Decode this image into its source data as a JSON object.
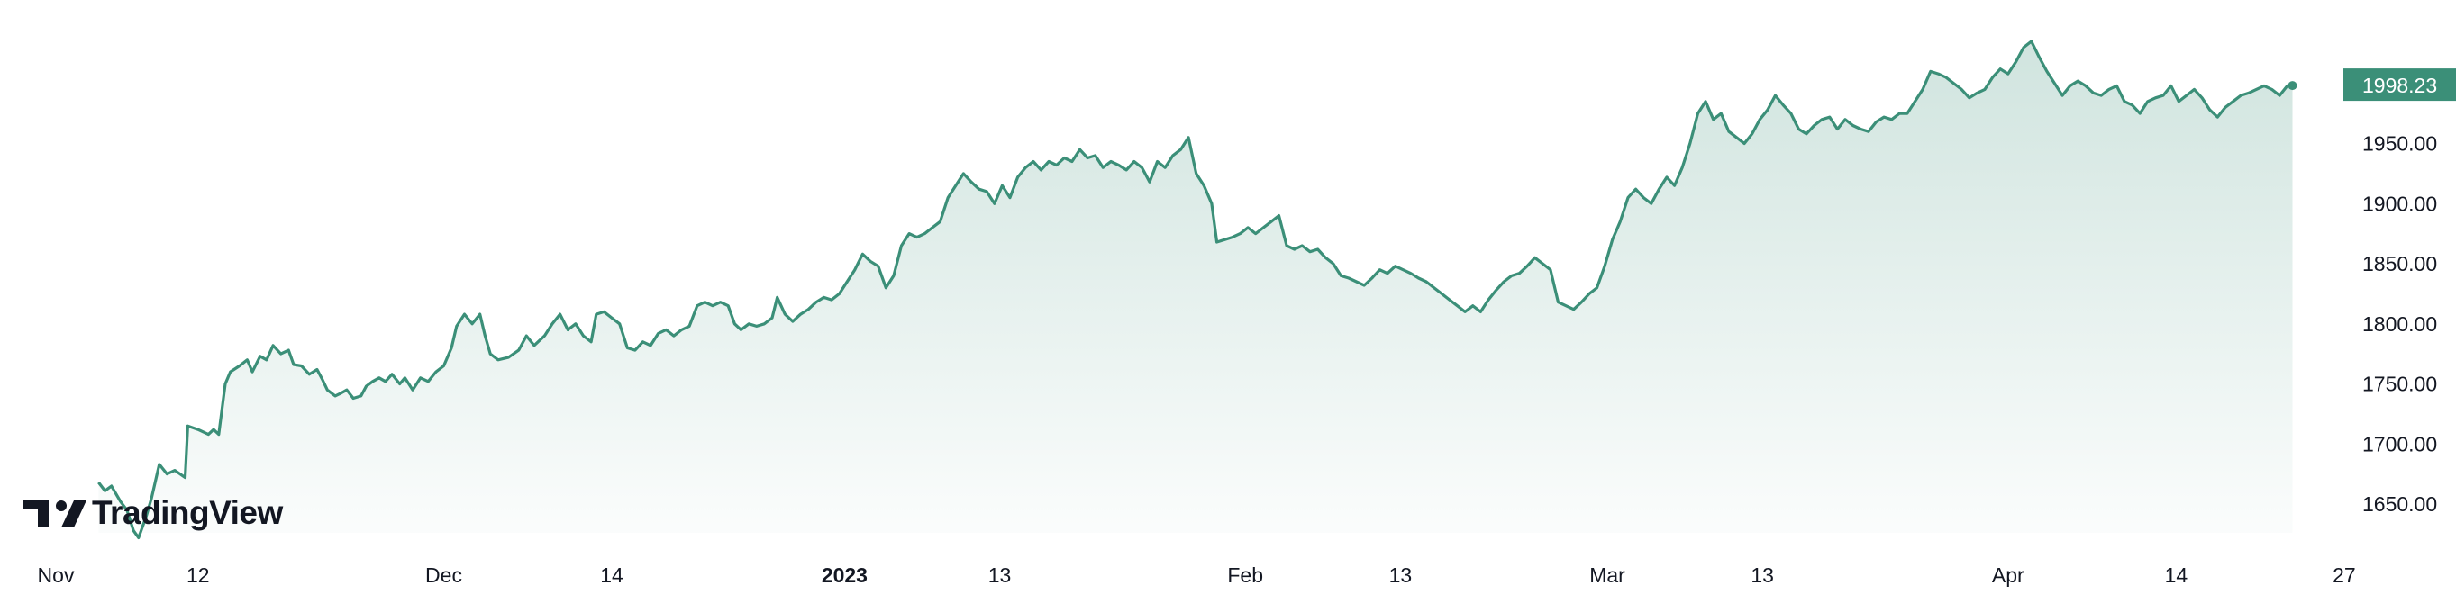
{
  "chart_data": {
    "type": "area",
    "title": "",
    "xlabel": "",
    "ylabel": "",
    "ylim": [
      1622,
      2050
    ],
    "line_color": "#3b8f78",
    "fill_color": "#3b8f78",
    "last_price_label": "1998.23",
    "y_ticks": [
      "1650.00",
      "1700.00",
      "1750.00",
      "1800.00",
      "1850.00",
      "1900.00",
      "1950.00"
    ],
    "x_ticks": [
      {
        "label": "Nov",
        "day": 0,
        "bold": false
      },
      {
        "label": "12",
        "day": 11,
        "bold": false
      },
      {
        "label": "Dec",
        "day": 30,
        "bold": false
      },
      {
        "label": "14",
        "day": 43,
        "bold": false
      },
      {
        "label": "2023",
        "day": 61,
        "bold": true
      },
      {
        "label": "13",
        "day": 73,
        "bold": false
      },
      {
        "label": "Feb",
        "day": 92,
        "bold": false
      },
      {
        "label": "13",
        "day": 104,
        "bold": false
      },
      {
        "label": "Mar",
        "day": 120,
        "bold": false
      },
      {
        "label": "13",
        "day": 132,
        "bold": false
      },
      {
        "label": "Apr",
        "day": 151,
        "bold": false
      },
      {
        "label": "14",
        "day": 164,
        "bold": false
      },
      {
        "label": "27",
        "day": 177,
        "bold": false
      }
    ],
    "series": [
      {
        "values": [
          [
            3.3,
            1668
          ],
          [
            3.8,
            1661
          ],
          [
            4.3,
            1665
          ],
          [
            5.0,
            1652
          ],
          [
            5.5,
            1645
          ],
          [
            6.0,
            1628
          ],
          [
            6.4,
            1622
          ],
          [
            7.0,
            1640
          ],
          [
            7.4,
            1655
          ],
          [
            8.0,
            1683
          ],
          [
            8.6,
            1675
          ],
          [
            9.2,
            1678
          ],
          [
            10.0,
            1672
          ],
          [
            10.2,
            1715
          ],
          [
            11.0,
            1712
          ],
          [
            11.8,
            1708
          ],
          [
            12.2,
            1712
          ],
          [
            12.6,
            1708
          ],
          [
            13.1,
            1750
          ],
          [
            13.5,
            1760
          ],
          [
            14.2,
            1765
          ],
          [
            14.8,
            1770
          ],
          [
            15.2,
            1760
          ],
          [
            15.8,
            1773
          ],
          [
            16.3,
            1770
          ],
          [
            16.8,
            1782
          ],
          [
            17.4,
            1775
          ],
          [
            18.0,
            1778
          ],
          [
            18.4,
            1766
          ],
          [
            19.0,
            1765
          ],
          [
            19.6,
            1758
          ],
          [
            20.2,
            1762
          ],
          [
            20.6,
            1754
          ],
          [
            21.0,
            1745
          ],
          [
            21.6,
            1740
          ],
          [
            22.0,
            1742
          ],
          [
            22.5,
            1745
          ],
          [
            23.0,
            1738
          ],
          [
            23.6,
            1740
          ],
          [
            24.0,
            1748
          ],
          [
            24.5,
            1752
          ],
          [
            25.0,
            1755
          ],
          [
            25.5,
            1752
          ],
          [
            26.0,
            1758
          ],
          [
            26.6,
            1750
          ],
          [
            27.0,
            1755
          ],
          [
            27.6,
            1745
          ],
          [
            28.2,
            1755
          ],
          [
            28.8,
            1752
          ],
          [
            29.4,
            1760
          ],
          [
            30.0,
            1765
          ],
          [
            30.6,
            1780
          ],
          [
            31.0,
            1798
          ],
          [
            31.6,
            1808
          ],
          [
            32.2,
            1800
          ],
          [
            32.8,
            1808
          ],
          [
            33.2,
            1790
          ],
          [
            33.6,
            1775
          ],
          [
            34.2,
            1770
          ],
          [
            35.0,
            1772
          ],
          [
            35.8,
            1778
          ],
          [
            36.4,
            1790
          ],
          [
            37.0,
            1782
          ],
          [
            37.8,
            1790
          ],
          [
            38.4,
            1800
          ],
          [
            39.0,
            1808
          ],
          [
            39.6,
            1795
          ],
          [
            40.2,
            1800
          ],
          [
            40.8,
            1790
          ],
          [
            41.4,
            1785
          ],
          [
            41.8,
            1808
          ],
          [
            42.4,
            1810
          ],
          [
            43.0,
            1805
          ],
          [
            43.6,
            1800
          ],
          [
            44.2,
            1780
          ],
          [
            44.8,
            1778
          ],
          [
            45.4,
            1785
          ],
          [
            46.0,
            1782
          ],
          [
            46.6,
            1792
          ],
          [
            47.2,
            1795
          ],
          [
            47.8,
            1790
          ],
          [
            48.4,
            1795
          ],
          [
            49.0,
            1798
          ],
          [
            49.6,
            1815
          ],
          [
            50.2,
            1818
          ],
          [
            50.8,
            1815
          ],
          [
            51.4,
            1818
          ],
          [
            52.0,
            1815
          ],
          [
            52.5,
            1800
          ],
          [
            53.0,
            1795
          ],
          [
            53.6,
            1800
          ],
          [
            54.2,
            1798
          ],
          [
            54.8,
            1800
          ],
          [
            55.4,
            1805
          ],
          [
            55.8,
            1822
          ],
          [
            56.4,
            1808
          ],
          [
            57.0,
            1802
          ],
          [
            57.6,
            1808
          ],
          [
            58.2,
            1812
          ],
          [
            58.8,
            1818
          ],
          [
            59.4,
            1822
          ],
          [
            60.0,
            1820
          ],
          [
            60.6,
            1825
          ],
          [
            61.2,
            1835
          ],
          [
            61.8,
            1845
          ],
          [
            62.4,
            1858
          ],
          [
            63.0,
            1852
          ],
          [
            63.6,
            1848
          ],
          [
            64.2,
            1830
          ],
          [
            64.8,
            1840
          ],
          [
            65.4,
            1865
          ],
          [
            66.0,
            1875
          ],
          [
            66.6,
            1872
          ],
          [
            67.2,
            1875
          ],
          [
            67.8,
            1880
          ],
          [
            68.4,
            1885
          ],
          [
            69.0,
            1905
          ],
          [
            69.6,
            1915
          ],
          [
            70.2,
            1925
          ],
          [
            70.8,
            1918
          ],
          [
            71.4,
            1912
          ],
          [
            72.0,
            1910
          ],
          [
            72.6,
            1900
          ],
          [
            73.2,
            1915
          ],
          [
            73.8,
            1905
          ],
          [
            74.4,
            1922
          ],
          [
            75.0,
            1930
          ],
          [
            75.6,
            1935
          ],
          [
            76.2,
            1928
          ],
          [
            76.8,
            1935
          ],
          [
            77.4,
            1932
          ],
          [
            78.0,
            1938
          ],
          [
            78.6,
            1935
          ],
          [
            79.2,
            1945
          ],
          [
            79.8,
            1938
          ],
          [
            80.4,
            1940
          ],
          [
            81.0,
            1930
          ],
          [
            81.6,
            1935
          ],
          [
            82.2,
            1932
          ],
          [
            82.8,
            1928
          ],
          [
            83.4,
            1935
          ],
          [
            84.0,
            1930
          ],
          [
            84.6,
            1918
          ],
          [
            85.2,
            1935
          ],
          [
            85.8,
            1930
          ],
          [
            86.4,
            1940
          ],
          [
            87.0,
            1945
          ],
          [
            87.6,
            1955
          ],
          [
            88.2,
            1925
          ],
          [
            88.8,
            1915
          ],
          [
            89.4,
            1900
          ],
          [
            89.8,
            1868
          ],
          [
            90.4,
            1870
          ],
          [
            91.0,
            1872
          ],
          [
            91.6,
            1875
          ],
          [
            92.2,
            1880
          ],
          [
            92.8,
            1875
          ],
          [
            93.4,
            1880
          ],
          [
            94.0,
            1885
          ],
          [
            94.6,
            1890
          ],
          [
            95.2,
            1865
          ],
          [
            95.8,
            1862
          ],
          [
            96.4,
            1865
          ],
          [
            97.0,
            1860
          ],
          [
            97.6,
            1862
          ],
          [
            98.2,
            1855
          ],
          [
            98.8,
            1850
          ],
          [
            99.4,
            1840
          ],
          [
            100.0,
            1838
          ],
          [
            100.6,
            1835
          ],
          [
            101.2,
            1832
          ],
          [
            101.8,
            1838
          ],
          [
            102.4,
            1845
          ],
          [
            103.0,
            1842
          ],
          [
            103.6,
            1848
          ],
          [
            104.2,
            1845
          ],
          [
            104.8,
            1842
          ],
          [
            105.4,
            1838
          ],
          [
            106.0,
            1835
          ],
          [
            106.6,
            1830
          ],
          [
            107.2,
            1825
          ],
          [
            107.8,
            1820
          ],
          [
            108.4,
            1815
          ],
          [
            109.0,
            1810
          ],
          [
            109.6,
            1815
          ],
          [
            110.2,
            1810
          ],
          [
            110.8,
            1820
          ],
          [
            111.4,
            1828
          ],
          [
            112.0,
            1835
          ],
          [
            112.6,
            1840
          ],
          [
            113.2,
            1842
          ],
          [
            113.8,
            1848
          ],
          [
            114.4,
            1855
          ],
          [
            115.0,
            1850
          ],
          [
            115.6,
            1845
          ],
          [
            116.2,
            1818
          ],
          [
            116.8,
            1815
          ],
          [
            117.4,
            1812
          ],
          [
            118.0,
            1818
          ],
          [
            118.6,
            1825
          ],
          [
            119.2,
            1830
          ],
          [
            119.8,
            1848
          ],
          [
            120.4,
            1870
          ],
          [
            121.0,
            1885
          ],
          [
            121.6,
            1905
          ],
          [
            122.2,
            1912
          ],
          [
            122.8,
            1905
          ],
          [
            123.4,
            1900
          ],
          [
            124.0,
            1912
          ],
          [
            124.6,
            1922
          ],
          [
            125.2,
            1915
          ],
          [
            125.8,
            1930
          ],
          [
            126.4,
            1950
          ],
          [
            127.0,
            1975
          ],
          [
            127.6,
            1985
          ],
          [
            128.2,
            1970
          ],
          [
            128.8,
            1975
          ],
          [
            129.4,
            1960
          ],
          [
            130.0,
            1955
          ],
          [
            130.6,
            1950
          ],
          [
            131.2,
            1958
          ],
          [
            131.8,
            1970
          ],
          [
            132.4,
            1978
          ],
          [
            133.0,
            1990
          ],
          [
            133.6,
            1982
          ],
          [
            134.2,
            1975
          ],
          [
            134.8,
            1962
          ],
          [
            135.4,
            1958
          ],
          [
            136.0,
            1965
          ],
          [
            136.6,
            1970
          ],
          [
            137.2,
            1972
          ],
          [
            137.8,
            1962
          ],
          [
            138.4,
            1970
          ],
          [
            139.0,
            1965
          ],
          [
            139.6,
            1962
          ],
          [
            140.2,
            1960
          ],
          [
            140.8,
            1968
          ],
          [
            141.4,
            1972
          ],
          [
            142.0,
            1970
          ],
          [
            142.6,
            1975
          ],
          [
            143.2,
            1975
          ],
          [
            143.8,
            1985
          ],
          [
            144.4,
            1995
          ],
          [
            145.0,
            2010
          ],
          [
            145.6,
            2008
          ],
          [
            146.2,
            2005
          ],
          [
            146.8,
            2000
          ],
          [
            147.4,
            1995
          ],
          [
            148.0,
            1988
          ],
          [
            148.6,
            1992
          ],
          [
            149.2,
            1995
          ],
          [
            149.8,
            2005
          ],
          [
            150.4,
            2012
          ],
          [
            151.0,
            2008
          ],
          [
            151.6,
            2018
          ],
          [
            152.2,
            2030
          ],
          [
            152.8,
            2035
          ],
          [
            153.4,
            2022
          ],
          [
            154.0,
            2010
          ],
          [
            154.6,
            2000
          ],
          [
            155.2,
            1990
          ],
          [
            155.8,
            1998
          ],
          [
            156.4,
            2002
          ],
          [
            157.0,
            1998
          ],
          [
            157.6,
            1992
          ],
          [
            158.2,
            1990
          ],
          [
            158.8,
            1995
          ],
          [
            159.4,
            1998
          ],
          [
            160.0,
            1985
          ],
          [
            160.6,
            1982
          ],
          [
            161.2,
            1975
          ],
          [
            161.8,
            1985
          ],
          [
            162.4,
            1988
          ],
          [
            163.0,
            1990
          ],
          [
            163.6,
            1998
          ],
          [
            164.2,
            1985
          ],
          [
            164.8,
            1990
          ],
          [
            165.4,
            1995
          ],
          [
            166.0,
            1988
          ],
          [
            166.6,
            1978
          ],
          [
            167.2,
            1972
          ],
          [
            167.8,
            1980
          ],
          [
            168.4,
            1985
          ],
          [
            169.0,
            1990
          ],
          [
            169.6,
            1992
          ],
          [
            170.2,
            1995
          ],
          [
            170.8,
            1998
          ],
          [
            171.4,
            1995
          ],
          [
            172.0,
            1990
          ],
          [
            172.6,
            1998
          ],
          [
            173.0,
            1998.23
          ]
        ]
      }
    ]
  },
  "branding": {
    "logo_text": "TradingView",
    "icon": "tradingview-logo-icon"
  }
}
